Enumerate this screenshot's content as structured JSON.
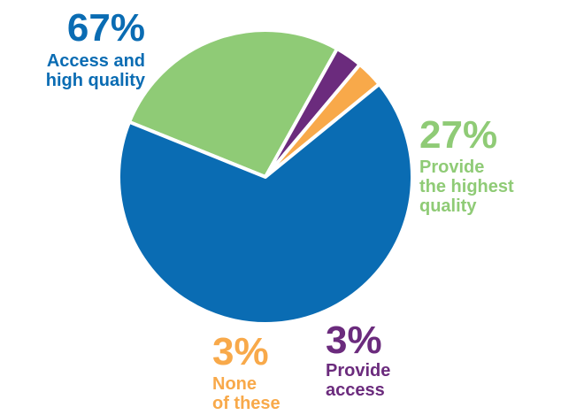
{
  "chart_data": {
    "type": "pie",
    "slices": [
      {
        "key": "access_high_quality",
        "value": 67,
        "percent_label": "67%",
        "label_lines": [
          "Access and",
          "high quality"
        ],
        "color": "#0a6cb3"
      },
      {
        "key": "highest_quality",
        "value": 27,
        "percent_label": "27%",
        "label_lines": [
          "Provide",
          "the highest",
          "quality"
        ],
        "color": "#8fcb76"
      },
      {
        "key": "provide_access",
        "value": 3,
        "percent_label": "3%",
        "label_lines": [
          "Provide",
          "access"
        ],
        "color": "#6b2b7d"
      },
      {
        "key": "none_of_these",
        "value": 3,
        "percent_label": "3%",
        "label_lines": [
          "None",
          "of these"
        ],
        "color": "#f8a94a"
      }
    ]
  }
}
